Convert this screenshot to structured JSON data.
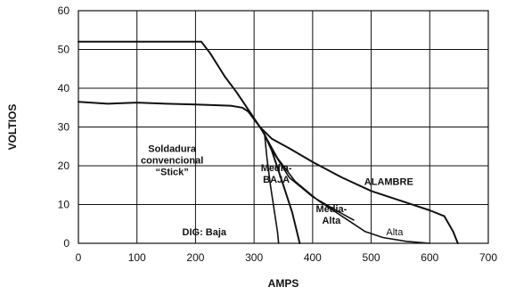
{
  "chart_data": {
    "type": "line",
    "title": "",
    "xlabel": "AMPS",
    "ylabel": "VOLTIOS",
    "xlim": [
      0,
      700
    ],
    "ylim": [
      0,
      60
    ],
    "grid": true,
    "x_ticks": [
      "0",
      "100",
      "200",
      "300",
      "400",
      "500",
      "600",
      "700"
    ],
    "y_ticks": [
      "0",
      "10",
      "20",
      "30",
      "40",
      "50",
      "60"
    ],
    "series": [
      {
        "points": [
          [
            0,
            52
          ],
          [
            100,
            52
          ],
          [
            200,
            52
          ],
          [
            210,
            52
          ],
          [
            225,
            49
          ],
          [
            250,
            43
          ],
          [
            270,
            39
          ],
          [
            290,
            34.5
          ],
          [
            310,
            30
          ],
          [
            330,
            27
          ],
          [
            360,
            24.5
          ],
          [
            400,
            21
          ],
          [
            450,
            17
          ],
          [
            500,
            13.5
          ],
          [
            560,
            10.5
          ],
          [
            600,
            8.5
          ],
          [
            625,
            7
          ],
          [
            640,
            3
          ],
          [
            648,
            0
          ]
        ]
      },
      {
        "points": [
          [
            0,
            36.5
          ],
          [
            50,
            36
          ],
          [
            100,
            36.3
          ],
          [
            150,
            36
          ],
          [
            200,
            35.8
          ],
          [
            260,
            35.5
          ],
          [
            280,
            35
          ],
          [
            290,
            34
          ],
          [
            300,
            32
          ],
          [
            310,
            30
          ],
          [
            318,
            28
          ],
          [
            330,
            24
          ],
          [
            350,
            15
          ],
          [
            365,
            8
          ],
          [
            378,
            0
          ]
        ]
      },
      {
        "points": [
          [
            318,
            28
          ],
          [
            322,
            22
          ],
          [
            328,
            15
          ],
          [
            335,
            8
          ],
          [
            340,
            3
          ],
          [
            342,
            0
          ]
        ]
      },
      {
        "points": [
          [
            318,
            28
          ],
          [
            335,
            23
          ],
          [
            360,
            17
          ],
          [
            400,
            12
          ],
          [
            440,
            8.5
          ],
          [
            470,
            6
          ]
        ]
      },
      {
        "points": [
          [
            318,
            28
          ],
          [
            340,
            22
          ],
          [
            370,
            16
          ],
          [
            410,
            11
          ],
          [
            450,
            7
          ],
          [
            490,
            3
          ],
          [
            520,
            1.5
          ],
          [
            560,
            0.5
          ],
          [
            600,
            0
          ]
        ]
      }
    ],
    "annotations": [
      {
        "lines": [
          "Soldadura",
          "convencional",
          "“Stick”"
        ],
        "x": 160,
        "y": 21.5,
        "bold": true
      },
      {
        "lines": [
          "Media-",
          "BAJA"
        ],
        "x": 338,
        "y": 18,
        "bold": true
      },
      {
        "lines": [
          "ALAMBRE"
        ],
        "x": 530,
        "y": 16,
        "bold": true
      },
      {
        "lines": [
          "Media-",
          "Alta"
        ],
        "x": 432,
        "y": 7.5,
        "bold": true
      },
      {
        "lines": [
          "DIG: Baja"
        ],
        "x": 215,
        "y": 3,
        "bold": true
      },
      {
        "lines": [
          "Alta"
        ],
        "x": 540,
        "y": 3,
        "bold": false
      }
    ]
  }
}
